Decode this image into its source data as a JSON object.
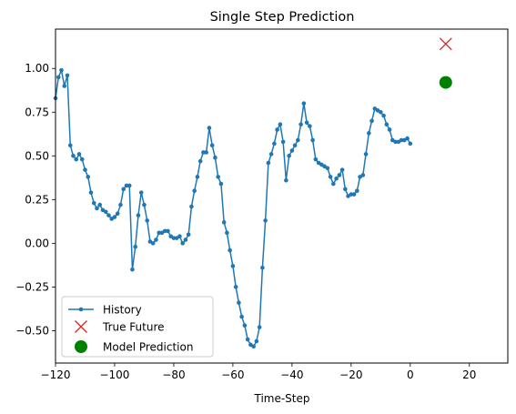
{
  "chart_data": {
    "type": "line",
    "title": "Single Step Prediction",
    "xlabel": "Time-Step",
    "ylabel": "",
    "xlim": [
      -120,
      33
    ],
    "ylim": [
      -0.685,
      1.225
    ],
    "x_ticks": [
      -120,
      -100,
      -80,
      -60,
      -40,
      -20,
      0,
      20
    ],
    "x_tick_labels": [
      "−120",
      "−100",
      "−80",
      "−60",
      "−40",
      "−20",
      "0",
      "20"
    ],
    "y_ticks": [
      -0.5,
      -0.25,
      0.0,
      0.25,
      0.5,
      0.75,
      1.0
    ],
    "y_tick_labels": [
      "−0.50",
      "−0.25",
      "0.00",
      "0.25",
      "0.50",
      "0.75",
      "1.00"
    ],
    "grid": false,
    "legend_position": "lower-left",
    "series": [
      {
        "name": "History",
        "kind": "line-with-markers",
        "color": "#1f77b4",
        "x": [
          -120,
          -119,
          -118,
          -117,
          -116,
          -115,
          -114,
          -113,
          -112,
          -111,
          -110,
          -109,
          -108,
          -107,
          -106,
          -105,
          -104,
          -103,
          -102,
          -101,
          -100,
          -99,
          -98,
          -97,
          -96,
          -95,
          -94,
          -93,
          -92,
          -91,
          -90,
          -89,
          -88,
          -87,
          -86,
          -85,
          -84,
          -83,
          -82,
          -81,
          -80,
          -79,
          -78,
          -77,
          -76,
          -75,
          -74,
          -73,
          -72,
          -71,
          -70,
          -69,
          -68,
          -67,
          -66,
          -65,
          -64,
          -63,
          -62,
          -61,
          -60,
          -59,
          -58,
          -57,
          -56,
          -55,
          -54,
          -53,
          -52,
          -51,
          -50,
          -49,
          -48,
          -47,
          -46,
          -45,
          -44,
          -43,
          -42,
          -41,
          -40,
          -39,
          -38,
          -37,
          -36,
          -35,
          -34,
          -33,
          -32,
          -31,
          -30,
          -29,
          -28,
          -27,
          -26,
          -25,
          -24,
          -23,
          -22,
          -21,
          -20,
          -19,
          -18,
          -17,
          -16,
          -15,
          -14,
          -13,
          -12,
          -11,
          -10,
          -9,
          -8,
          -7,
          -6,
          -5,
          -4,
          -3,
          -2,
          -1,
          0
        ],
        "y": [
          0.83,
          0.95,
          0.99,
          0.9,
          0.96,
          0.56,
          0.5,
          0.48,
          0.51,
          0.48,
          0.42,
          0.38,
          0.29,
          0.23,
          0.2,
          0.22,
          0.19,
          0.18,
          0.16,
          0.14,
          0.15,
          0.17,
          0.22,
          0.31,
          0.33,
          0.33,
          -0.15,
          -0.02,
          0.16,
          0.29,
          0.22,
          0.13,
          0.01,
          0.0,
          0.02,
          0.06,
          0.06,
          0.07,
          0.07,
          0.04,
          0.03,
          0.03,
          0.04,
          0.0,
          0.02,
          0.05,
          0.21,
          0.3,
          0.38,
          0.47,
          0.52,
          0.52,
          0.66,
          0.56,
          0.49,
          0.38,
          0.34,
          0.12,
          0.06,
          -0.04,
          -0.13,
          -0.25,
          -0.34,
          -0.42,
          -0.47,
          -0.55,
          -0.58,
          -0.59,
          -0.56,
          -0.48,
          -0.14,
          0.13,
          0.46,
          0.51,
          0.57,
          0.65,
          0.68,
          0.58,
          0.36,
          0.5,
          0.53,
          0.56,
          0.59,
          0.68,
          0.8,
          0.69,
          0.67,
          0.59,
          0.48,
          0.46,
          0.45,
          0.44,
          0.43,
          0.38,
          0.34,
          0.37,
          0.39,
          0.42,
          0.31,
          0.27,
          0.28,
          0.28,
          0.3,
          0.38,
          0.39,
          0.51,
          0.63,
          0.7,
          0.77,
          0.76,
          0.75,
          0.73,
          0.68,
          0.65,
          0.59,
          0.58,
          0.58,
          0.59,
          0.59,
          0.6,
          0.57
        ]
      },
      {
        "name": "True Future",
        "kind": "x-marker",
        "color": "#d62728",
        "x": [
          12
        ],
        "y": [
          1.14
        ]
      },
      {
        "name": "Model Prediction",
        "kind": "circle-marker",
        "color": "#008000",
        "x": [
          12
        ],
        "y": [
          0.92
        ]
      }
    ]
  }
}
